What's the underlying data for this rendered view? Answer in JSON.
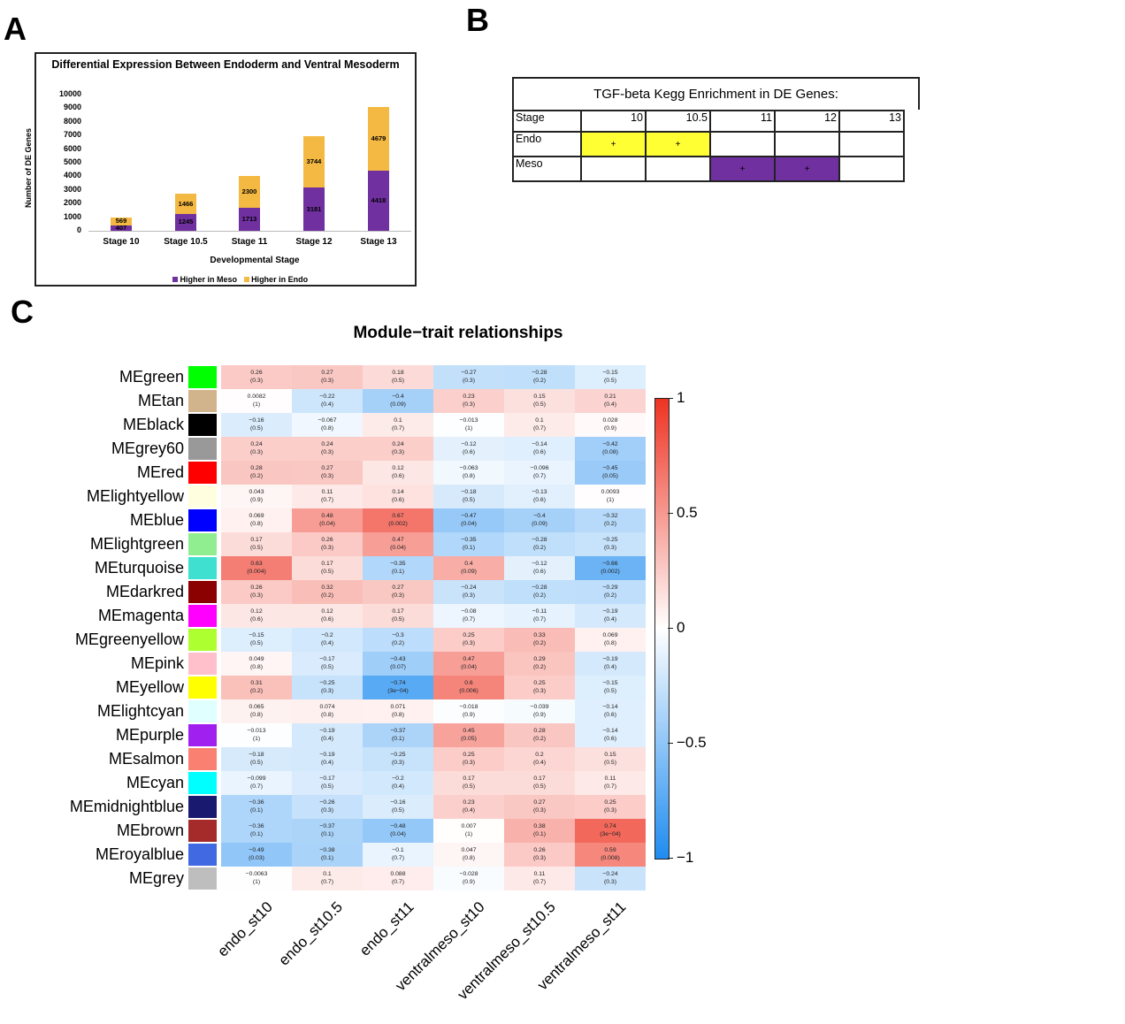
{
  "panel_labels": {
    "a": "A",
    "b": "B",
    "c": "C"
  },
  "chart_data": [
    {
      "type": "bar",
      "stacked": true,
      "title": "Differential Expression Between Endoderm and Ventral Mesoderm",
      "xlabel": "Developmental Stage",
      "ylabel": "Number of DE Genes",
      "ylim": [
        0,
        10000
      ],
      "yticks": [
        0,
        1000,
        2000,
        3000,
        4000,
        5000,
        6000,
        7000,
        8000,
        9000,
        10000
      ],
      "categories": [
        "Stage 10",
        "Stage 10.5",
        "Stage 11",
        "Stage 12",
        "Stage 13"
      ],
      "series": [
        {
          "name": "Higher in Meso",
          "color": "#7030a0",
          "values": [
            407,
            1245,
            1713,
            3181,
            4418
          ]
        },
        {
          "name": "Higher in Endo",
          "color": "#f4b942",
          "values": [
            569,
            1466,
            2300,
            3744,
            4679
          ]
        }
      ],
      "legend": "bottom"
    },
    {
      "type": "heatmap",
      "title": "Module−trait relationships",
      "columns": [
        "endo_st10",
        "endo_st10.5",
        "endo_st11",
        "ventralmeso_st10",
        "ventralmeso_st10.5",
        "ventralmeso_st11"
      ],
      "colorbar": {
        "range": [
          -1,
          1
        ],
        "ticks": [
          "1",
          "0.5",
          "0",
          "−0.5",
          "−1"
        ],
        "low": "#1f8cf0",
        "mid": "#ffffff",
        "high": "#ee3322"
      },
      "rows": [
        {
          "name": "MEgreen",
          "color": "#00ff00",
          "r": [
            "0.26",
            "0.27",
            "0.18",
            "−0.27",
            "−0.28",
            "−0.15"
          ],
          "p": [
            "(0.3)",
            "(0.3)",
            "(0.5)",
            "(0.3)",
            "(0.2)",
            "(0.5)"
          ]
        },
        {
          "name": "MEtan",
          "color": "#d2b48c",
          "r": [
            "0.0082",
            "−0.22",
            "−0.4",
            "0.23",
            "0.15",
            "0.21"
          ],
          "p": [
            "(1)",
            "(0.4)",
            "(0.09)",
            "(0.3)",
            "(0.5)",
            "(0.4)"
          ]
        },
        {
          "name": "MEblack",
          "color": "#000000",
          "r": [
            "−0.16",
            "−0.067",
            "0.1",
            "−0.013",
            "0.1",
            "0.028"
          ],
          "p": [
            "(0.5)",
            "(0.8)",
            "(0.7)",
            "(1)",
            "(0.7)",
            "(0.9)"
          ]
        },
        {
          "name": "MEgrey60",
          "color": "#999999",
          "r": [
            "0.24",
            "0.24",
            "0.24",
            "−0.12",
            "−0.14",
            "−0.42"
          ],
          "p": [
            "(0.3)",
            "(0.3)",
            "(0.3)",
            "(0.6)",
            "(0.6)",
            "(0.08)"
          ]
        },
        {
          "name": "MEred",
          "color": "#ff0000",
          "r": [
            "0.28",
            "0.27",
            "0.12",
            "−0.063",
            "−0.096",
            "−0.45"
          ],
          "p": [
            "(0.2)",
            "(0.3)",
            "(0.6)",
            "(0.8)",
            "(0.7)",
            "(0.05)"
          ]
        },
        {
          "name": "MElightyellow",
          "color": "#ffffe0",
          "r": [
            "0.043",
            "0.11",
            "0.14",
            "−0.18",
            "−0.13",
            "0.0093"
          ],
          "p": [
            "(0.9)",
            "(0.7)",
            "(0.6)",
            "(0.5)",
            "(0.6)",
            "(1)"
          ]
        },
        {
          "name": "MEblue",
          "color": "#0000ff",
          "r": [
            "0.069",
            "0.48",
            "0.67",
            "−0.47",
            "−0.4",
            "−0.32"
          ],
          "p": [
            "(0.8)",
            "(0.04)",
            "(0.002)",
            "(0.04)",
            "(0.09)",
            "(0.2)"
          ]
        },
        {
          "name": "MElightgreen",
          "color": "#90ee90",
          "r": [
            "0.17",
            "0.26",
            "0.47",
            "−0.35",
            "−0.28",
            "−0.25"
          ],
          "p": [
            "(0.5)",
            "(0.3)",
            "(0.04)",
            "(0.1)",
            "(0.2)",
            "(0.3)"
          ]
        },
        {
          "name": "MEturquoise",
          "color": "#40e0d0",
          "r": [
            "0.63",
            "0.17",
            "−0.35",
            "0.4",
            "−0.12",
            "−0.66"
          ],
          "p": [
            "(0.004)",
            "(0.5)",
            "(0.1)",
            "(0.09)",
            "(0.6)",
            "(0.002)"
          ]
        },
        {
          "name": "MEdarkred",
          "color": "#8b0000",
          "r": [
            "0.26",
            "0.32",
            "0.27",
            "−0.24",
            "−0.28",
            "−0.29"
          ],
          "p": [
            "(0.3)",
            "(0.2)",
            "(0.3)",
            "(0.3)",
            "(0.2)",
            "(0.2)"
          ]
        },
        {
          "name": "MEmagenta",
          "color": "#ff00ff",
          "r": [
            "0.12",
            "0.12",
            "0.17",
            "−0.08",
            "−0.11",
            "−0.19"
          ],
          "p": [
            "(0.6)",
            "(0.6)",
            "(0.5)",
            "(0.7)",
            "(0.7)",
            "(0.4)"
          ]
        },
        {
          "name": "MEgreenyellow",
          "color": "#adff2f",
          "r": [
            "−0.15",
            "−0.2",
            "−0.3",
            "0.25",
            "0.33",
            "0.069"
          ],
          "p": [
            "(0.5)",
            "(0.4)",
            "(0.2)",
            "(0.3)",
            "(0.2)",
            "(0.8)"
          ]
        },
        {
          "name": "MEpink",
          "color": "#ffc0cb",
          "r": [
            "0.049",
            "−0.17",
            "−0.43",
            "0.47",
            "0.29",
            "−0.19"
          ],
          "p": [
            "(0.8)",
            "(0.5)",
            "(0.07)",
            "(0.04)",
            "(0.2)",
            "(0.4)"
          ]
        },
        {
          "name": "MEyellow",
          "color": "#ffff00",
          "r": [
            "0.31",
            "−0.25",
            "−0.74",
            "0.6",
            "0.25",
            "−0.15"
          ],
          "p": [
            "(0.2)",
            "(0.3)",
            "(3e−04)",
            "(0.006)",
            "(0.3)",
            "(0.5)"
          ]
        },
        {
          "name": "MElightcyan",
          "color": "#e0ffff",
          "r": [
            "0.065",
            "0.074",
            "0.071",
            "−0.018",
            "−0.039",
            "−0.14"
          ],
          "p": [
            "(0.8)",
            "(0.8)",
            "(0.8)",
            "(0.9)",
            "(0.9)",
            "(0.6)"
          ]
        },
        {
          "name": "MEpurple",
          "color": "#a020f0",
          "r": [
            "−0.013",
            "−0.19",
            "−0.37",
            "0.45",
            "0.28",
            "−0.14"
          ],
          "p": [
            "(1)",
            "(0.4)",
            "(0.1)",
            "(0.05)",
            "(0.2)",
            "(0.6)"
          ]
        },
        {
          "name": "MEsalmon",
          "color": "#fa8072",
          "r": [
            "−0.18",
            "−0.19",
            "−0.25",
            "0.25",
            "0.2",
            "0.15"
          ],
          "p": [
            "(0.5)",
            "(0.4)",
            "(0.3)",
            "(0.3)",
            "(0.4)",
            "(0.5)"
          ]
        },
        {
          "name": "MEcyan",
          "color": "#00ffff",
          "r": [
            "−0.099",
            "−0.17",
            "−0.2",
            "0.17",
            "0.17",
            "0.11"
          ],
          "p": [
            "(0.7)",
            "(0.5)",
            "(0.4)",
            "(0.5)",
            "(0.5)",
            "(0.7)"
          ]
        },
        {
          "name": "MEmidnightblue",
          "color": "#191970",
          "r": [
            "−0.36",
            "−0.26",
            "−0.16",
            "0.23",
            "0.27",
            "0.25"
          ],
          "p": [
            "(0.1)",
            "(0.3)",
            "(0.5)",
            "(0.4)",
            "(0.3)",
            "(0.3)"
          ]
        },
        {
          "name": "MEbrown",
          "color": "#a52a2a",
          "r": [
            "−0.36",
            "−0.37",
            "−0.48",
            "0.007",
            "0.38",
            "0.74"
          ],
          "p": [
            "(0.1)",
            "(0.1)",
            "(0.04)",
            "(1)",
            "(0.1)",
            "(3e−04)"
          ]
        },
        {
          "name": "MEroyalblue",
          "color": "#4169e1",
          "r": [
            "−0.49",
            "−0.38",
            "−0.1",
            "0.047",
            "0.26",
            "0.59"
          ],
          "p": [
            "(0.03)",
            "(0.1)",
            "(0.7)",
            "(0.8)",
            "(0.3)",
            "(0.008)"
          ]
        },
        {
          "name": "MEgrey",
          "color": "#bebebe",
          "r": [
            "−0.0063",
            "0.1",
            "0.088",
            "−0.028",
            "0.11",
            "−0.24"
          ],
          "p": [
            "(1)",
            "(0.7)",
            "(0.7)",
            "(0.9)",
            "(0.7)",
            "(0.3)"
          ]
        }
      ]
    }
  ],
  "kegg_table": {
    "title": "TGF-beta Kegg Enrichment in DE Genes:",
    "header": [
      "Stage",
      "10",
      "10.5",
      "11",
      "12",
      "13"
    ],
    "rows": [
      {
        "label": "Endo",
        "cells": [
          "+",
          "+",
          "",
          "",
          ""
        ],
        "fills": [
          "#ffff33",
          "#ffff33",
          "",
          "",
          ""
        ]
      },
      {
        "label": "Meso",
        "cells": [
          "",
          "",
          "+",
          "+",
          ""
        ],
        "fills": [
          "",
          "",
          "#7030a0",
          "#7030a0",
          ""
        ]
      }
    ]
  }
}
